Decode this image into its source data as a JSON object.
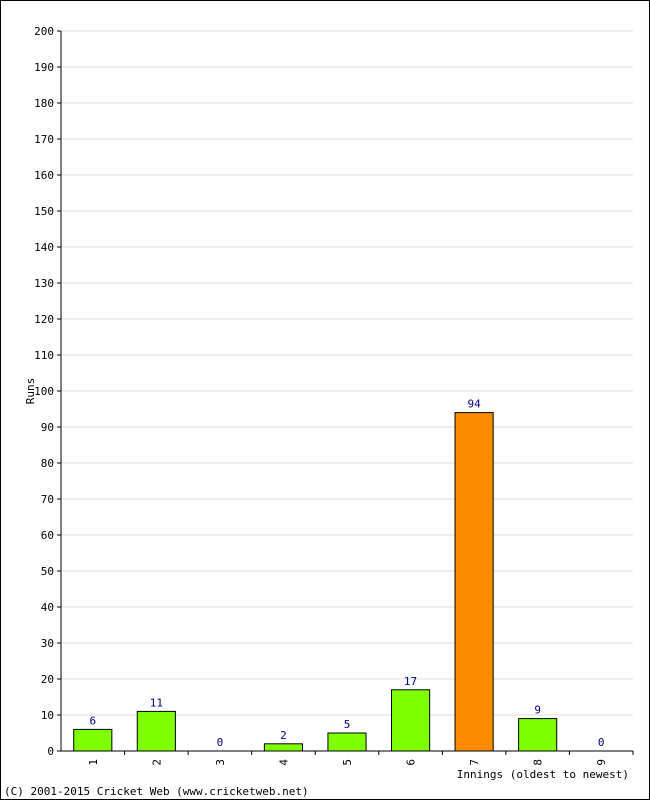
{
  "chart_data": {
    "type": "bar",
    "categories": [
      "1",
      "2",
      "3",
      "4",
      "5",
      "6",
      "7",
      "8",
      "9"
    ],
    "values": [
      6,
      11,
      0,
      2,
      5,
      17,
      94,
      9,
      0
    ],
    "highlight_index": 6,
    "ylabel": "Runs",
    "xlabel": "Innings (oldest to newest)",
    "ylim": [
      0,
      200
    ],
    "ytick_step": 10,
    "grid": true,
    "colors": {
      "bar": "#80ff00",
      "highlight": "#ff8c00",
      "bar_stroke": "#000000",
      "value_label": "#000080",
      "grid": "#dddddd"
    }
  },
  "footer": "(C) 2001-2015 Cricket Web (www.cricketweb.net)"
}
